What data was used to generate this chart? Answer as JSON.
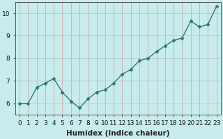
{
  "x": [
    0,
    1,
    2,
    3,
    4,
    5,
    6,
    7,
    8,
    9,
    10,
    11,
    12,
    13,
    14,
    15,
    16,
    17,
    18,
    19,
    20,
    21,
    22,
    23
  ],
  "y": [
    6.0,
    6.0,
    6.7,
    6.9,
    7.1,
    6.5,
    6.1,
    5.8,
    6.2,
    6.5,
    6.6,
    6.9,
    7.3,
    7.5,
    7.9,
    8.0,
    8.3,
    8.55,
    8.8,
    8.9,
    9.65,
    9.4,
    9.5,
    10.3
  ],
  "line_color": "#2d7b6f",
  "marker": "D",
  "marker_size": 2.5,
  "background_color": "#c8ecec",
  "grid_color": "#b8b8b8",
  "grid_color_minor": "#d8d8d8",
  "xlabel": "Humidex (Indice chaleur)",
  "xlim": [
    -0.5,
    23.5
  ],
  "ylim": [
    5.5,
    10.5
  ],
  "yticks": [
    6,
    7,
    8,
    9,
    10
  ],
  "xticks": [
    0,
    1,
    2,
    3,
    4,
    5,
    6,
    7,
    8,
    9,
    10,
    11,
    12,
    13,
    14,
    15,
    16,
    17,
    18,
    19,
    20,
    21,
    22,
    23
  ],
  "tick_label_fontsize": 6.5,
  "xlabel_fontsize": 7.5,
  "line_width": 1.0,
  "axis_color": "#555555"
}
